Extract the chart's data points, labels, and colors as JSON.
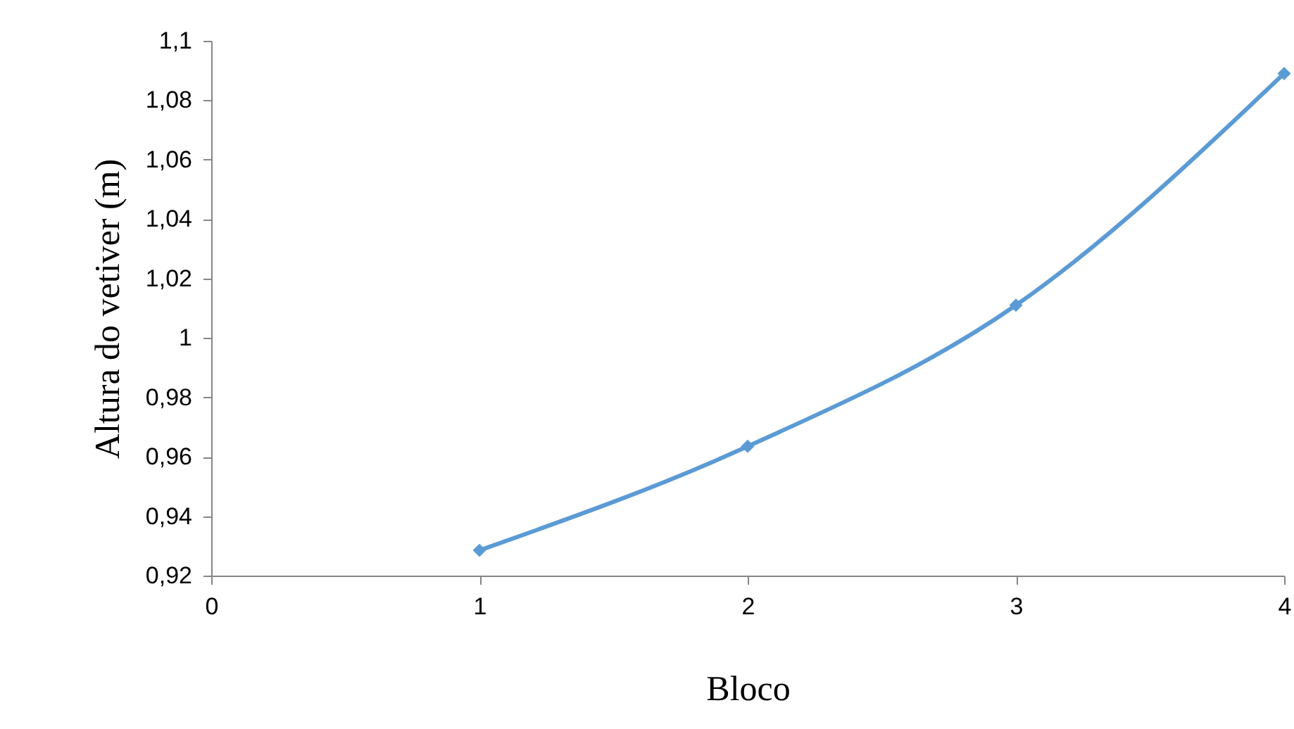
{
  "chart_data": {
    "type": "line",
    "xlabel": "Bloco",
    "ylabel": "Altura do vetiver (m)",
    "x": [
      1,
      2,
      3,
      4
    ],
    "series": [
      {
        "color": "#5b9bd5",
        "values": [
          0.9285,
          0.9635,
          1.011,
          1.089
        ]
      }
    ],
    "xlim": [
      0,
      4
    ],
    "xticks": [
      0,
      1,
      2,
      3,
      4
    ],
    "ylim": [
      0.92,
      1.1
    ],
    "yticks": [
      {
        "value": 0.92,
        "label": "0,92"
      },
      {
        "value": 0.94,
        "label": "0,94"
      },
      {
        "value": 0.96,
        "label": "0,96"
      },
      {
        "value": 0.98,
        "label": "0,98"
      },
      {
        "value": 1,
        "label": "1"
      },
      {
        "value": 1.02,
        "label": "1,02"
      },
      {
        "value": 1.04,
        "label": "1,04"
      },
      {
        "value": 1.06,
        "label": "1,06"
      },
      {
        "value": 1.08,
        "label": "1,08"
      },
      {
        "value": 1.1,
        "label": "1,1"
      }
    ],
    "grid": false,
    "marker": "diamond",
    "line_style": "solid"
  }
}
